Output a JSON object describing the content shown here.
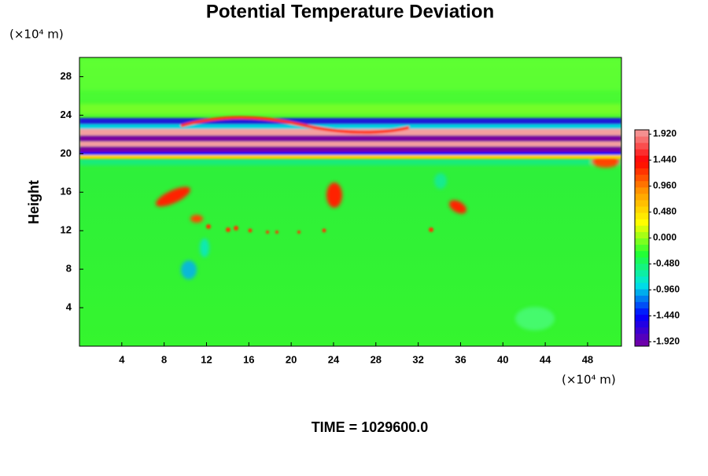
{
  "chart_data": {
    "type": "contour",
    "title": "Potential Temperature Deviation",
    "ylabel": "Height",
    "xunit": "(×10⁴ m)",
    "yunit": "(×10⁴ m)",
    "annotation": "TIME = 1029600.0",
    "xlim": [
      0,
      51.2
    ],
    "ylim": [
      0,
      30
    ],
    "xticks": [
      4,
      8,
      12,
      16,
      20,
      24,
      28,
      32,
      36,
      40,
      44,
      48
    ],
    "yticks": [
      4,
      8,
      12,
      16,
      20,
      24,
      28
    ],
    "clim": [
      -2.0,
      2.0
    ],
    "cticks": [
      {
        "value": 1.92,
        "label": "1.920"
      },
      {
        "value": 1.44,
        "label": "1.440"
      },
      {
        "value": 0.96,
        "label": "0.960"
      },
      {
        "value": 0.48,
        "label": "0.480"
      },
      {
        "value": 0,
        "label": "0.000"
      },
      {
        "value": -0.48,
        "label": "-0.480"
      },
      {
        "value": -0.96,
        "label": "-0.960"
      },
      {
        "value": -1.44,
        "label": "-1.440"
      },
      {
        "value": -1.92,
        "label": "-1.920"
      }
    ],
    "colormap": [
      "#7a00a0",
      "#0000ff",
      "#00e6e6",
      "#22ff33",
      "#ffff00",
      "#ff9900",
      "#ff0000",
      "#f4a0a0"
    ]
  }
}
